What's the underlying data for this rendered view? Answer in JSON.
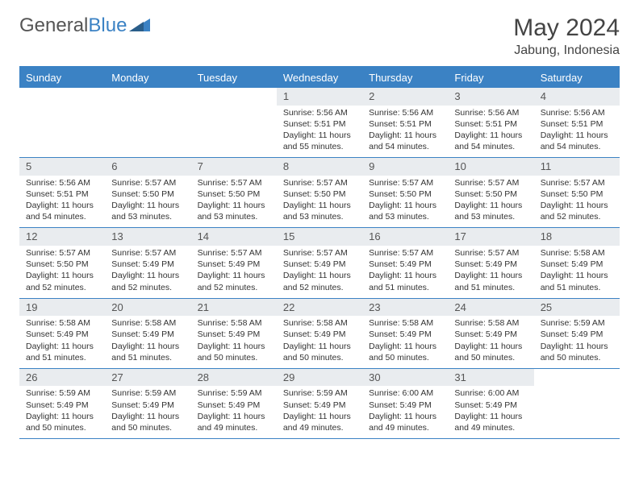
{
  "brand": {
    "part1": "General",
    "part2": "Blue"
  },
  "title": "May 2024",
  "location": "Jabung, Indonesia",
  "colors": {
    "accent": "#3b82c4",
    "daynum_bg": "#e9ecef",
    "text": "#333333",
    "background": "#ffffff"
  },
  "typography": {
    "title_fontsize": 30,
    "location_fontsize": 16,
    "dow_fontsize": 13,
    "daynum_fontsize": 13,
    "body_fontsize": 10.5,
    "font_family": "Arial"
  },
  "layout": {
    "columns": 7,
    "rows": 5,
    "cell_min_height": 86
  },
  "days_of_week": [
    "Sunday",
    "Monday",
    "Tuesday",
    "Wednesday",
    "Thursday",
    "Friday",
    "Saturday"
  ],
  "weeks": [
    [
      {
        "n": "",
        "empty": true
      },
      {
        "n": "",
        "empty": true
      },
      {
        "n": "",
        "empty": true
      },
      {
        "n": "1",
        "sunrise": "Sunrise: 5:56 AM",
        "sunset": "Sunset: 5:51 PM",
        "day": "Daylight: 11 hours and 55 minutes."
      },
      {
        "n": "2",
        "sunrise": "Sunrise: 5:56 AM",
        "sunset": "Sunset: 5:51 PM",
        "day": "Daylight: 11 hours and 54 minutes."
      },
      {
        "n": "3",
        "sunrise": "Sunrise: 5:56 AM",
        "sunset": "Sunset: 5:51 PM",
        "day": "Daylight: 11 hours and 54 minutes."
      },
      {
        "n": "4",
        "sunrise": "Sunrise: 5:56 AM",
        "sunset": "Sunset: 5:51 PM",
        "day": "Daylight: 11 hours and 54 minutes."
      }
    ],
    [
      {
        "n": "5",
        "sunrise": "Sunrise: 5:56 AM",
        "sunset": "Sunset: 5:51 PM",
        "day": "Daylight: 11 hours and 54 minutes."
      },
      {
        "n": "6",
        "sunrise": "Sunrise: 5:57 AM",
        "sunset": "Sunset: 5:50 PM",
        "day": "Daylight: 11 hours and 53 minutes."
      },
      {
        "n": "7",
        "sunrise": "Sunrise: 5:57 AM",
        "sunset": "Sunset: 5:50 PM",
        "day": "Daylight: 11 hours and 53 minutes."
      },
      {
        "n": "8",
        "sunrise": "Sunrise: 5:57 AM",
        "sunset": "Sunset: 5:50 PM",
        "day": "Daylight: 11 hours and 53 minutes."
      },
      {
        "n": "9",
        "sunrise": "Sunrise: 5:57 AM",
        "sunset": "Sunset: 5:50 PM",
        "day": "Daylight: 11 hours and 53 minutes."
      },
      {
        "n": "10",
        "sunrise": "Sunrise: 5:57 AM",
        "sunset": "Sunset: 5:50 PM",
        "day": "Daylight: 11 hours and 53 minutes."
      },
      {
        "n": "11",
        "sunrise": "Sunrise: 5:57 AM",
        "sunset": "Sunset: 5:50 PM",
        "day": "Daylight: 11 hours and 52 minutes."
      }
    ],
    [
      {
        "n": "12",
        "sunrise": "Sunrise: 5:57 AM",
        "sunset": "Sunset: 5:50 PM",
        "day": "Daylight: 11 hours and 52 minutes."
      },
      {
        "n": "13",
        "sunrise": "Sunrise: 5:57 AM",
        "sunset": "Sunset: 5:49 PM",
        "day": "Daylight: 11 hours and 52 minutes."
      },
      {
        "n": "14",
        "sunrise": "Sunrise: 5:57 AM",
        "sunset": "Sunset: 5:49 PM",
        "day": "Daylight: 11 hours and 52 minutes."
      },
      {
        "n": "15",
        "sunrise": "Sunrise: 5:57 AM",
        "sunset": "Sunset: 5:49 PM",
        "day": "Daylight: 11 hours and 52 minutes."
      },
      {
        "n": "16",
        "sunrise": "Sunrise: 5:57 AM",
        "sunset": "Sunset: 5:49 PM",
        "day": "Daylight: 11 hours and 51 minutes."
      },
      {
        "n": "17",
        "sunrise": "Sunrise: 5:57 AM",
        "sunset": "Sunset: 5:49 PM",
        "day": "Daylight: 11 hours and 51 minutes."
      },
      {
        "n": "18",
        "sunrise": "Sunrise: 5:58 AM",
        "sunset": "Sunset: 5:49 PM",
        "day": "Daylight: 11 hours and 51 minutes."
      }
    ],
    [
      {
        "n": "19",
        "sunrise": "Sunrise: 5:58 AM",
        "sunset": "Sunset: 5:49 PM",
        "day": "Daylight: 11 hours and 51 minutes."
      },
      {
        "n": "20",
        "sunrise": "Sunrise: 5:58 AM",
        "sunset": "Sunset: 5:49 PM",
        "day": "Daylight: 11 hours and 51 minutes."
      },
      {
        "n": "21",
        "sunrise": "Sunrise: 5:58 AM",
        "sunset": "Sunset: 5:49 PM",
        "day": "Daylight: 11 hours and 50 minutes."
      },
      {
        "n": "22",
        "sunrise": "Sunrise: 5:58 AM",
        "sunset": "Sunset: 5:49 PM",
        "day": "Daylight: 11 hours and 50 minutes."
      },
      {
        "n": "23",
        "sunrise": "Sunrise: 5:58 AM",
        "sunset": "Sunset: 5:49 PM",
        "day": "Daylight: 11 hours and 50 minutes."
      },
      {
        "n": "24",
        "sunrise": "Sunrise: 5:58 AM",
        "sunset": "Sunset: 5:49 PM",
        "day": "Daylight: 11 hours and 50 minutes."
      },
      {
        "n": "25",
        "sunrise": "Sunrise: 5:59 AM",
        "sunset": "Sunset: 5:49 PM",
        "day": "Daylight: 11 hours and 50 minutes."
      }
    ],
    [
      {
        "n": "26",
        "sunrise": "Sunrise: 5:59 AM",
        "sunset": "Sunset: 5:49 PM",
        "day": "Daylight: 11 hours and 50 minutes."
      },
      {
        "n": "27",
        "sunrise": "Sunrise: 5:59 AM",
        "sunset": "Sunset: 5:49 PM",
        "day": "Daylight: 11 hours and 50 minutes."
      },
      {
        "n": "28",
        "sunrise": "Sunrise: 5:59 AM",
        "sunset": "Sunset: 5:49 PM",
        "day": "Daylight: 11 hours and 49 minutes."
      },
      {
        "n": "29",
        "sunrise": "Sunrise: 5:59 AM",
        "sunset": "Sunset: 5:49 PM",
        "day": "Daylight: 11 hours and 49 minutes."
      },
      {
        "n": "30",
        "sunrise": "Sunrise: 6:00 AM",
        "sunset": "Sunset: 5:49 PM",
        "day": "Daylight: 11 hours and 49 minutes."
      },
      {
        "n": "31",
        "sunrise": "Sunrise: 6:00 AM",
        "sunset": "Sunset: 5:49 PM",
        "day": "Daylight: 11 hours and 49 minutes."
      },
      {
        "n": "",
        "empty": true
      }
    ]
  ]
}
